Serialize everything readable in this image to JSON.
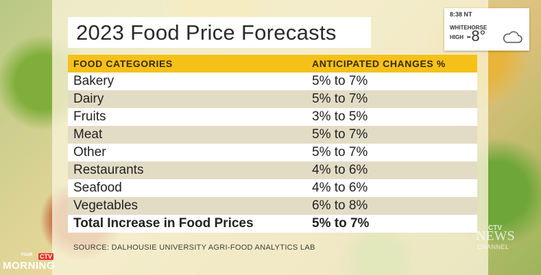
{
  "title": "2023 Food Price Forecasts",
  "table": {
    "headers": [
      "FOOD CATEGORIES",
      "ANTICIPATED CHANGES %"
    ],
    "rows": [
      {
        "category": "Bakery",
        "change": "5% to 7%"
      },
      {
        "category": "Dairy",
        "change": "5% to 7%"
      },
      {
        "category": "Fruits",
        "change": "3% to 5%"
      },
      {
        "category": "Meat",
        "change": "5% to 7%"
      },
      {
        "category": "Other",
        "change": "5% to 7%"
      },
      {
        "category": "Restaurants",
        "change": "4% to 6%"
      },
      {
        "category": "Seafood",
        "change": "4% to 6%"
      },
      {
        "category": "Vegetables",
        "change": "6% to 8%"
      }
    ],
    "total": {
      "category": "Total Increase in Food Prices",
      "change": "5% to 7%"
    }
  },
  "source": "SOURCE: DALHOUSIE UNIVERSITY AGRI-FOOD ANALYTICS LAB",
  "weather": {
    "time": "8:38 NT",
    "city": "WHITEHORSE",
    "high_label": "HIGH",
    "temperature": "-8°",
    "icon": "cloud-icon"
  },
  "branding": {
    "show_your": "YOUR",
    "show_ctv": "CTV",
    "show_morning": "MORNING",
    "channel_ctv": "CTV",
    "channel_news": "NEWS",
    "channel_label": "CHANNEL"
  },
  "colors": {
    "header_bg": "#f5c119",
    "row_light": "#ffffff",
    "row_shade": "#e3dcc5",
    "panel": "#f7f1d5"
  }
}
